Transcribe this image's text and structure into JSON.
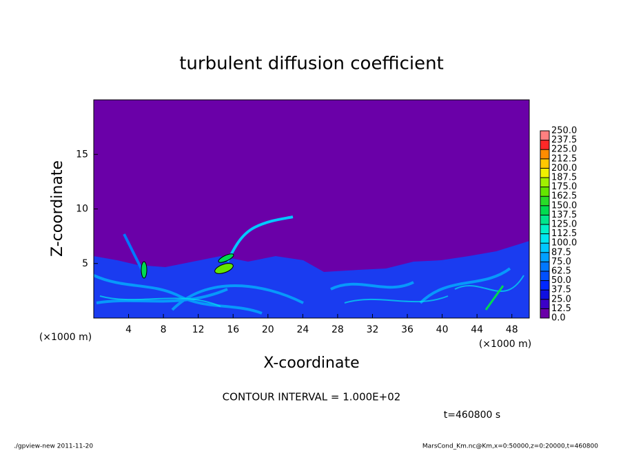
{
  "chart_data": {
    "type": "contour",
    "title": "turbulent diffusion coefficient",
    "x_label": "X-coordinate",
    "y_label": "Z-coordinate",
    "x_unit": "(×1000 m)",
    "y_unit": "(×1000 m)",
    "xlim": [
      0,
      50
    ],
    "ylim": [
      0,
      20
    ],
    "xticks": [
      4,
      8,
      12,
      16,
      20,
      24,
      28,
      32,
      36,
      40,
      44,
      48
    ],
    "yticks": [
      5,
      10,
      15
    ],
    "levels": [
      {
        "value": 0,
        "label": "0.0"
      },
      12.5,
      {
        "value": 25,
        "label": "25.0"
      },
      37.5,
      {
        "value": 50,
        "label": "50.0"
      },
      62.5,
      {
        "value": 75,
        "label": "75.0"
      },
      87.5,
      {
        "value": 100,
        "label": "100.0"
      },
      112.5,
      {
        "value": 125,
        "label": "125.0"
      },
      137.5,
      {
        "value": 150,
        "label": "150.0"
      },
      162.5,
      {
        "value": 175,
        "label": "175.0"
      },
      187.5,
      {
        "value": 200,
        "label": "200.0"
      },
      212.5,
      {
        "value": 225,
        "label": "225.0"
      },
      237.5,
      {
        "value": 250,
        "label": "250.0"
      }
    ],
    "colors": [
      "#6a00a8",
      "#3c00c8",
      "#1010e0",
      "#0028ff",
      "#0050ff",
      "#0078ff",
      "#00a0ff",
      "#00c8ff",
      "#00e6f0",
      "#00f0c8",
      "#00e68c",
      "#00dc50",
      "#28dc28",
      "#64e600",
      "#a0f000",
      "#f0f000",
      "#ffc800",
      "#ff8c00",
      "#ff2828",
      "#ff8080"
    ],
    "contour_interval": "CONTOUR INTERVAL = 1.000E+02",
    "time_label": "t=460800 s",
    "footer_left": "./gpview-new  2011-11-20",
    "footer_right": "MarsCond_Km.nc@Km,x=0:50000,z=0:20000,t=460800"
  }
}
